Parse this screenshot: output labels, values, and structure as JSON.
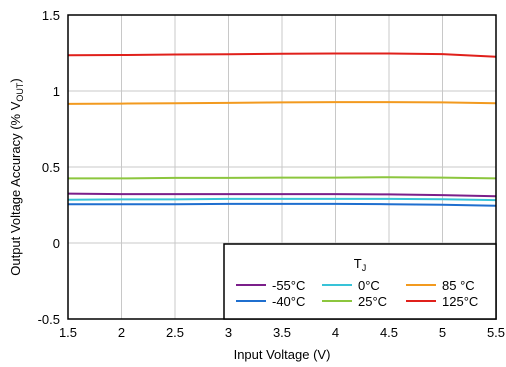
{
  "chart_data": {
    "type": "line",
    "xlabel": "Input Voltage (V)",
    "ylabel": "Output Voltage Accuracy (% V",
    "ylabel_sub": "OUT",
    "ylabel_end": ")",
    "xlim": [
      1.5,
      5.5
    ],
    "ylim": [
      -0.5,
      1.5
    ],
    "x_ticks": [
      "1.5",
      "2",
      "2.5",
      "3",
      "3.5",
      "4",
      "4.5",
      "5",
      "5.5"
    ],
    "y_ticks": [
      "-0.5",
      "0",
      "0.5",
      "1",
      "1.5"
    ],
    "grid": true,
    "legend_title": "T",
    "legend_title_sub": "J",
    "legend_placement": "bottom-right",
    "x": [
      1.5,
      2.0,
      2.5,
      3.0,
      3.5,
      4.0,
      4.5,
      5.0,
      5.5
    ],
    "series": [
      {
        "name": "-55°C",
        "color": "#7b1f8a",
        "values": [
          0.325,
          0.322,
          0.322,
          0.322,
          0.322,
          0.322,
          0.32,
          0.315,
          0.307
        ]
      },
      {
        "name": "-40°C",
        "color": "#1f6fcf",
        "values": [
          0.255,
          0.255,
          0.255,
          0.257,
          0.257,
          0.257,
          0.255,
          0.252,
          0.245
        ]
      },
      {
        "name": "0°C",
        "color": "#38c3d8",
        "values": [
          0.285,
          0.287,
          0.287,
          0.29,
          0.29,
          0.29,
          0.29,
          0.288,
          0.282
        ]
      },
      {
        "name": "25°C",
        "color": "#8cc63e",
        "values": [
          0.425,
          0.425,
          0.428,
          0.428,
          0.43,
          0.43,
          0.433,
          0.43,
          0.425
        ]
      },
      {
        "name": "85 °C",
        "color": "#f29a1f",
        "values": [
          0.915,
          0.917,
          0.92,
          0.922,
          0.925,
          0.927,
          0.927,
          0.925,
          0.92
        ]
      },
      {
        "name": "125°C",
        "color": "#e0201b",
        "values": [
          1.235,
          1.237,
          1.24,
          1.242,
          1.245,
          1.247,
          1.247,
          1.243,
          1.225
        ]
      }
    ]
  }
}
